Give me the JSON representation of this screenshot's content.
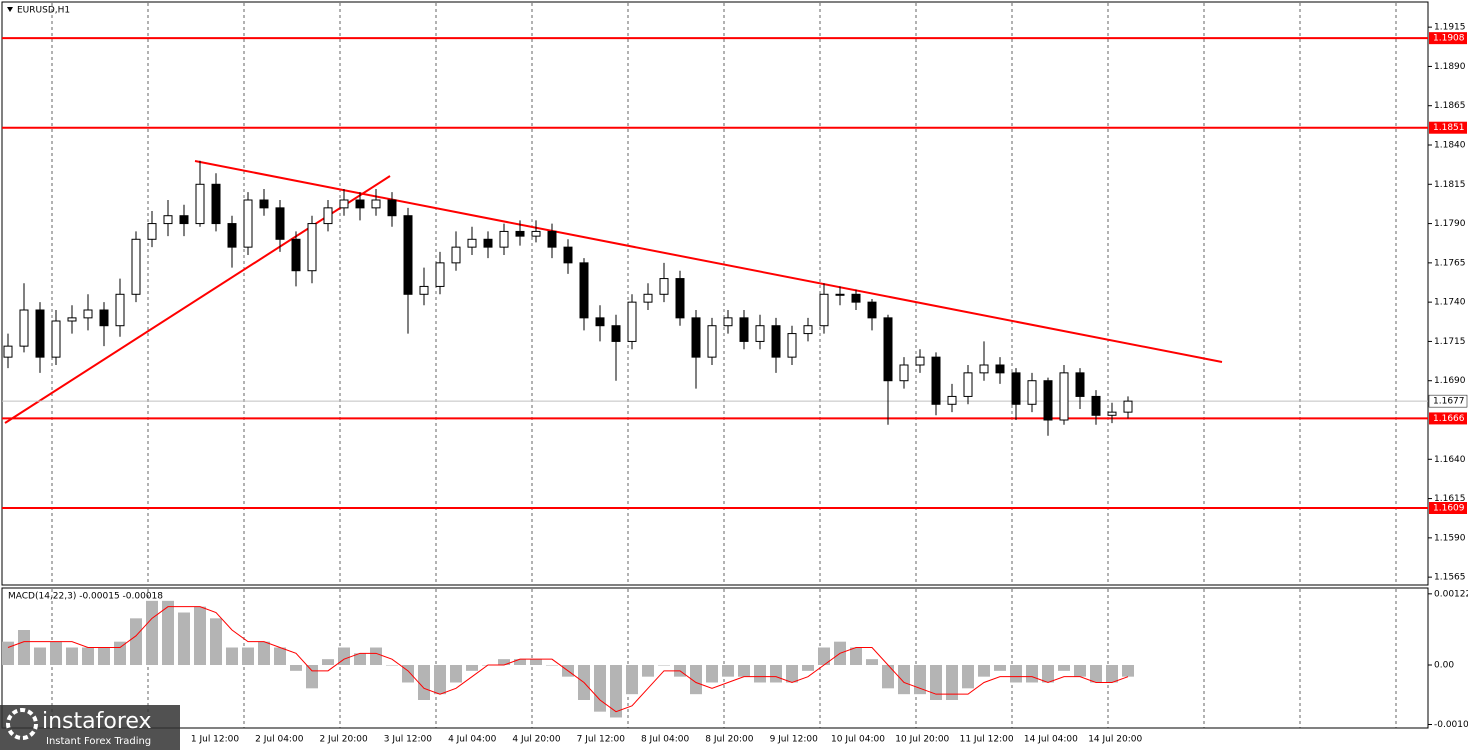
{
  "chart_data": [
    {
      "type": "candlestick",
      "title": "EURUSD,H1",
      "ohlc": [
        [
          1.1705,
          1.172,
          1.1698,
          1.1712
        ],
        [
          1.1712,
          1.1752,
          1.1708,
          1.1735
        ],
        [
          1.1735,
          1.174,
          1.1695,
          1.1705
        ],
        [
          1.1705,
          1.1735,
          1.17,
          1.1728
        ],
        [
          1.1728,
          1.1738,
          1.172,
          1.173
        ],
        [
          1.173,
          1.1745,
          1.1722,
          1.1735
        ],
        [
          1.1735,
          1.174,
          1.1712,
          1.1725
        ],
        [
          1.1725,
          1.1755,
          1.1718,
          1.1745
        ],
        [
          1.1745,
          1.1785,
          1.174,
          1.178
        ],
        [
          1.178,
          1.1798,
          1.1775,
          1.179
        ],
        [
          1.179,
          1.1805,
          1.1782,
          1.1795
        ],
        [
          1.1795,
          1.1802,
          1.1782,
          1.179
        ],
        [
          1.179,
          1.183,
          1.1788,
          1.1815
        ],
        [
          1.1815,
          1.1822,
          1.1785,
          1.179
        ],
        [
          1.179,
          1.1795,
          1.1762,
          1.1775
        ],
        [
          1.1775,
          1.181,
          1.177,
          1.1805
        ],
        [
          1.1805,
          1.1812,
          1.1795,
          1.18
        ],
        [
          1.18,
          1.1805,
          1.1772,
          1.178
        ],
        [
          1.178,
          1.1785,
          1.175,
          1.176
        ],
        [
          1.176,
          1.1795,
          1.1752,
          1.179
        ],
        [
          1.179,
          1.1805,
          1.1785,
          1.18
        ],
        [
          1.18,
          1.1812,
          1.1795,
          1.1805
        ],
        [
          1.1805,
          1.181,
          1.1792,
          1.18
        ],
        [
          1.18,
          1.1812,
          1.1795,
          1.1805
        ],
        [
          1.1805,
          1.181,
          1.1788,
          1.1795
        ],
        [
          1.1795,
          1.18,
          1.172,
          1.1745
        ],
        [
          1.1745,
          1.1762,
          1.1738,
          1.175
        ],
        [
          1.175,
          1.1772,
          1.1745,
          1.1765
        ],
        [
          1.1765,
          1.1785,
          1.176,
          1.1775
        ],
        [
          1.1775,
          1.1788,
          1.177,
          1.178
        ],
        [
          1.178,
          1.1785,
          1.1768,
          1.1775
        ],
        [
          1.1775,
          1.179,
          1.177,
          1.1785
        ],
        [
          1.1785,
          1.1792,
          1.1776,
          1.1782
        ],
        [
          1.1782,
          1.1792,
          1.1778,
          1.1785
        ],
        [
          1.1785,
          1.179,
          1.1768,
          1.1775
        ],
        [
          1.1775,
          1.178,
          1.1758,
          1.1765
        ],
        [
          1.1765,
          1.1768,
          1.1722,
          1.173
        ],
        [
          1.173,
          1.1738,
          1.1715,
          1.1725
        ],
        [
          1.1725,
          1.1732,
          1.169,
          1.1715
        ],
        [
          1.1715,
          1.1745,
          1.171,
          1.174
        ],
        [
          1.174,
          1.1752,
          1.1735,
          1.1745
        ],
        [
          1.1745,
          1.1765,
          1.174,
          1.1755
        ],
        [
          1.1755,
          1.176,
          1.1725,
          1.173
        ],
        [
          1.173,
          1.1735,
          1.1685,
          1.1705
        ],
        [
          1.1705,
          1.173,
          1.17,
          1.1725
        ],
        [
          1.1725,
          1.1735,
          1.172,
          1.173
        ],
        [
          1.173,
          1.1735,
          1.171,
          1.1715
        ],
        [
          1.1715,
          1.1732,
          1.171,
          1.1725
        ],
        [
          1.1725,
          1.173,
          1.1695,
          1.1705
        ],
        [
          1.1705,
          1.1725,
          1.17,
          1.172
        ],
        [
          1.172,
          1.173,
          1.1715,
          1.1725
        ],
        [
          1.1725,
          1.1752,
          1.172,
          1.1745
        ],
        [
          1.1745,
          1.175,
          1.1738,
          1.1745
        ],
        [
          1.1745,
          1.1748,
          1.1735,
          1.174
        ],
        [
          1.174,
          1.1742,
          1.1722,
          1.173
        ],
        [
          1.173,
          1.1732,
          1.1662,
          1.169
        ],
        [
          1.169,
          1.1705,
          1.1685,
          1.17
        ],
        [
          1.17,
          1.171,
          1.1695,
          1.1705
        ],
        [
          1.1705,
          1.1708,
          1.1668,
          1.1675
        ],
        [
          1.1675,
          1.1688,
          1.167,
          1.168
        ],
        [
          1.168,
          1.17,
          1.1675,
          1.1695
        ],
        [
          1.1695,
          1.1715,
          1.169,
          1.17
        ],
        [
          1.17,
          1.1705,
          1.1688,
          1.1695
        ],
        [
          1.1695,
          1.1698,
          1.1665,
          1.1675
        ],
        [
          1.1675,
          1.1695,
          1.167,
          1.169
        ],
        [
          1.169,
          1.1692,
          1.1655,
          1.1665
        ],
        [
          1.1665,
          1.17,
          1.1662,
          1.1695
        ],
        [
          1.1695,
          1.1698,
          1.1672,
          1.168
        ],
        [
          1.168,
          1.1684,
          1.1662,
          1.1668
        ],
        [
          1.1668,
          1.1676,
          1.1663,
          1.167
        ],
        [
          1.167,
          1.168,
          1.1666,
          1.1677
        ]
      ],
      "ylim": [
        1.156,
        1.1931
      ],
      "yticks": [
        1.1915,
        {
          "value": 1.189,
          "label": "1.1890"
        },
        1.1865,
        {
          "value": 1.184,
          "label": "1.1840"
        },
        1.1815,
        {
          "value": 1.179,
          "label": "1.1790"
        },
        1.1765,
        {
          "value": 1.174,
          "label": "1.1740"
        },
        1.1715,
        {
          "value": 1.169,
          "label": "1.1690"
        },
        {
          "value": 1.164,
          "label": "1.1640"
        },
        1.1615,
        {
          "value": 1.159,
          "label": "1.1590"
        },
        1.1565
      ],
      "levels": [
        1.1908,
        1.1851,
        1.1666,
        1.1609
      ],
      "level_color": "#ff0000",
      "last_price": 1.1677,
      "x_labels": [
        "1 Jul 12:00",
        "2 Jul 04:00",
        "2 Jul 20:00",
        "3 Jul 12:00",
        "4 Jul 04:00",
        "4 Jul 20:00",
        "7 Jul 12:00",
        "8 Jul 04:00",
        "8 Jul 20:00",
        "9 Jul 12:00",
        "10 Jul 04:00",
        "10 Jul 20:00",
        "11 Jul 12:00",
        "14 Jul 04:00",
        "14 Jul 20:00"
      ]
    },
    {
      "type": "macd",
      "title": "MACD(14,22,3) -0.00015 -0.00018",
      "histogram": [
        0.0004,
        0.0006,
        0.0003,
        0.0004,
        0.0003,
        0.0003,
        0.0003,
        0.0004,
        0.0008,
        0.0011,
        0.0011,
        0.0009,
        0.001,
        0.0008,
        0.0003,
        0.0003,
        0.0004,
        0.0003,
        -0.0001,
        -0.0004,
        0.0001,
        0.0003,
        0.0002,
        0.0003,
        0,
        -0.0003,
        -0.0006,
        -0.0005,
        -0.0003,
        -0.0001,
        0,
        0.0001,
        0.0001,
        0.0001,
        0,
        -0.0002,
        -0.0006,
        -0.0008,
        -0.0009,
        -0.0005,
        -0.0002,
        0,
        -0.0002,
        -0.0005,
        -0.0003,
        -0.0002,
        -0.0002,
        -0.0003,
        -0.0003,
        -0.0003,
        -0.0001,
        0.0003,
        0.0004,
        0.0003,
        0.0001,
        -0.0004,
        -0.0005,
        -0.0005,
        -0.0006,
        -0.0006,
        -0.0004,
        -0.0002,
        -0.0001,
        -0.0003,
        -0.0003,
        -0.0003,
        -0.0001,
        -0.0002,
        -0.0003,
        -0.0003,
        -0.0002
      ],
      "signal": [
        0.0003,
        0.0004,
        0.0004,
        0.0004,
        0.0004,
        0.0003,
        0.0003,
        0.0003,
        0.0005,
        0.0008,
        0.001,
        0.001,
        0.001,
        0.0009,
        0.0006,
        0.0004,
        0.0004,
        0.0003,
        0.0002,
        -0.0001,
        -0.0001,
        0.0001,
        0.0002,
        0.0002,
        0.0001,
        -0.0001,
        -0.0004,
        -0.0005,
        -0.0004,
        -0.0002,
        0,
        0,
        0.0001,
        0.0001,
        0.0001,
        -0.0001,
        -0.0003,
        -0.0006,
        -0.0008,
        -0.0007,
        -0.0004,
        -0.0001,
        -0.0001,
        -0.0003,
        -0.0004,
        -0.0003,
        -0.0002,
        -0.0002,
        -0.0002,
        -0.0003,
        -0.0002,
        0,
        0.0002,
        0.0003,
        0.0003,
        0,
        -0.0003,
        -0.0004,
        -0.0005,
        -0.0005,
        -0.0005,
        -0.0003,
        -0.0002,
        -0.0002,
        -0.0002,
        -0.0003,
        -0.0002,
        -0.0002,
        -0.0003,
        -0.0003,
        -0.0002
      ],
      "histogram_color": "#b4b4b4",
      "signal_color": "#ff0000",
      "ylim": [
        -0.00108,
        0.00132
      ],
      "yticks": [
        0.00122,
        {
          "value": 0,
          "label": "0.00"
        },
        -0.00102
      ]
    }
  ],
  "watermark": {
    "brand": "instaforex",
    "tagline": "Instant Forex Trading"
  }
}
